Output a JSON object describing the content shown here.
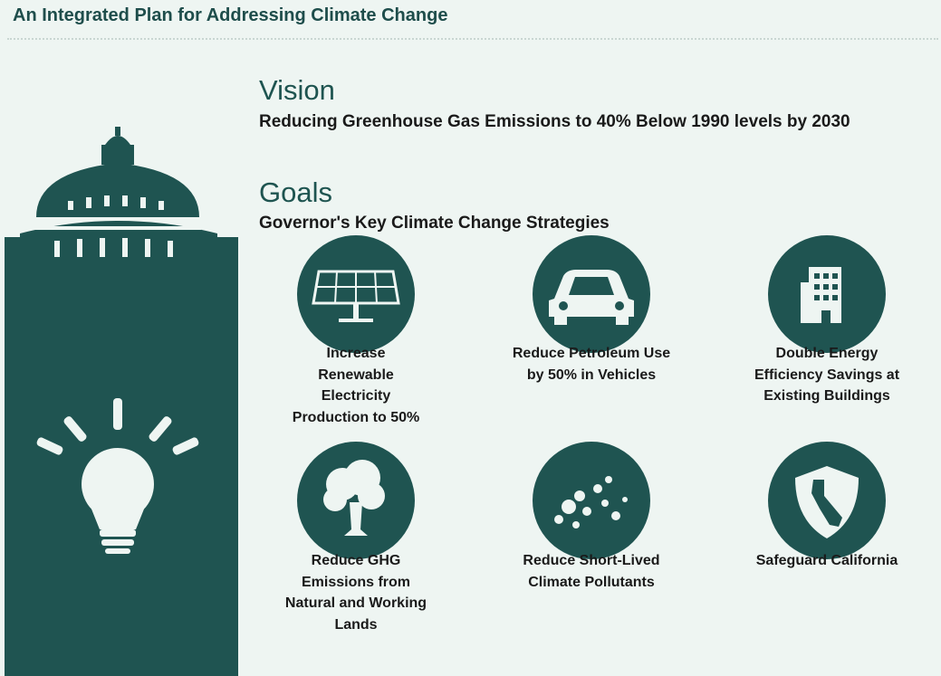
{
  "header": {
    "title": "An Integrated Plan for Addressing Climate Change"
  },
  "vision": {
    "heading": "Vision",
    "text": "Reducing Greenhouse Gas Emissions to 40% Below 1990 levels by 2030"
  },
  "goals": {
    "heading": "Goals",
    "subheading": "Governor's Key Climate Change Strategies",
    "items": [
      {
        "label": "Increase Renewable Electricity Production to 50%"
      },
      {
        "label": "Reduce Petroleum Use by 50% in Vehicles"
      },
      {
        "label": "Double Energy Efficiency Savings at Existing Buildings"
      },
      {
        "label": "Reduce GHG Emissions from Natural and Working Lands"
      },
      {
        "label": "Reduce Short-Lived Climate Pollutants"
      },
      {
        "label": "Safeguard California"
      }
    ]
  }
}
